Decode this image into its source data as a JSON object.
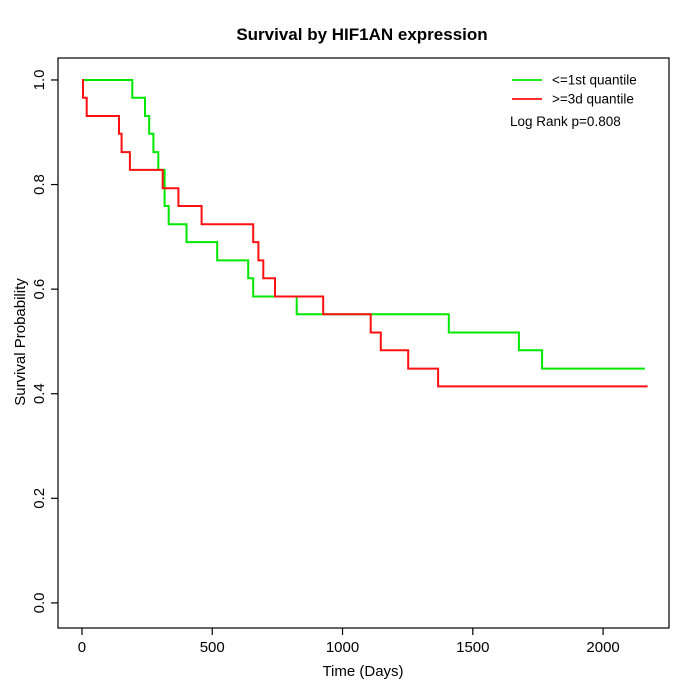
{
  "title": "Survival by HIF1AN expression",
  "axes": {
    "x_label": "Time (Days)",
    "y_label": "Survival Probability"
  },
  "legend": {
    "items": [
      {
        "label": "<=1st quantile",
        "color": "#00E800"
      },
      {
        "label": ">=3d quantile",
        "color": "#FF1010"
      }
    ],
    "annotation": "Log Rank p=0.808"
  },
  "chart_data": {
    "type": "line",
    "subtype": "kaplan-meier-step",
    "title": "Survival by HIF1AN expression",
    "xlabel": "Time (Days)",
    "ylabel": "Survival Probability",
    "xlim": [
      -92,
      2253
    ],
    "ylim": [
      -0.048,
      1.042
    ],
    "xticks": [
      0,
      500,
      1000,
      1500,
      2000
    ],
    "ytick_labels": [
      "0.0",
      "0.2",
      "0.4",
      "0.6",
      "0.8",
      "1.0"
    ],
    "grid": false,
    "legend_position": "top-right",
    "log_rank_p": 0.808,
    "series": [
      {
        "name": "<=1st quantile",
        "color": "#00E800",
        "end_time": 2160,
        "points": [
          [
            0,
            1.0
          ],
          [
            193,
            0.966
          ],
          [
            242,
            0.931
          ],
          [
            258,
            0.897
          ],
          [
            274,
            0.862
          ],
          [
            293,
            0.828
          ],
          [
            317,
            0.759
          ],
          [
            333,
            0.724
          ],
          [
            401,
            0.69
          ],
          [
            519,
            0.655
          ],
          [
            638,
            0.621
          ],
          [
            657,
            0.586
          ],
          [
            824,
            0.552
          ],
          [
            1408,
            0.517
          ],
          [
            1677,
            0.483
          ],
          [
            1766,
            0.448
          ]
        ]
      },
      {
        "name": ">=3d quantile",
        "color": "#FF1010",
        "end_time": 2171,
        "points": [
          [
            0,
            1.0
          ],
          [
            4,
            0.966
          ],
          [
            18,
            0.931
          ],
          [
            142,
            0.897
          ],
          [
            152,
            0.862
          ],
          [
            184,
            0.828
          ],
          [
            310,
            0.793
          ],
          [
            370,
            0.759
          ],
          [
            459,
            0.724
          ],
          [
            657,
            0.69
          ],
          [
            677,
            0.655
          ],
          [
            696,
            0.621
          ],
          [
            741,
            0.586
          ],
          [
            926,
            0.552
          ],
          [
            1108,
            0.517
          ],
          [
            1147,
            0.483
          ],
          [
            1252,
            0.448
          ],
          [
            1367,
            0.414
          ]
        ]
      }
    ]
  }
}
